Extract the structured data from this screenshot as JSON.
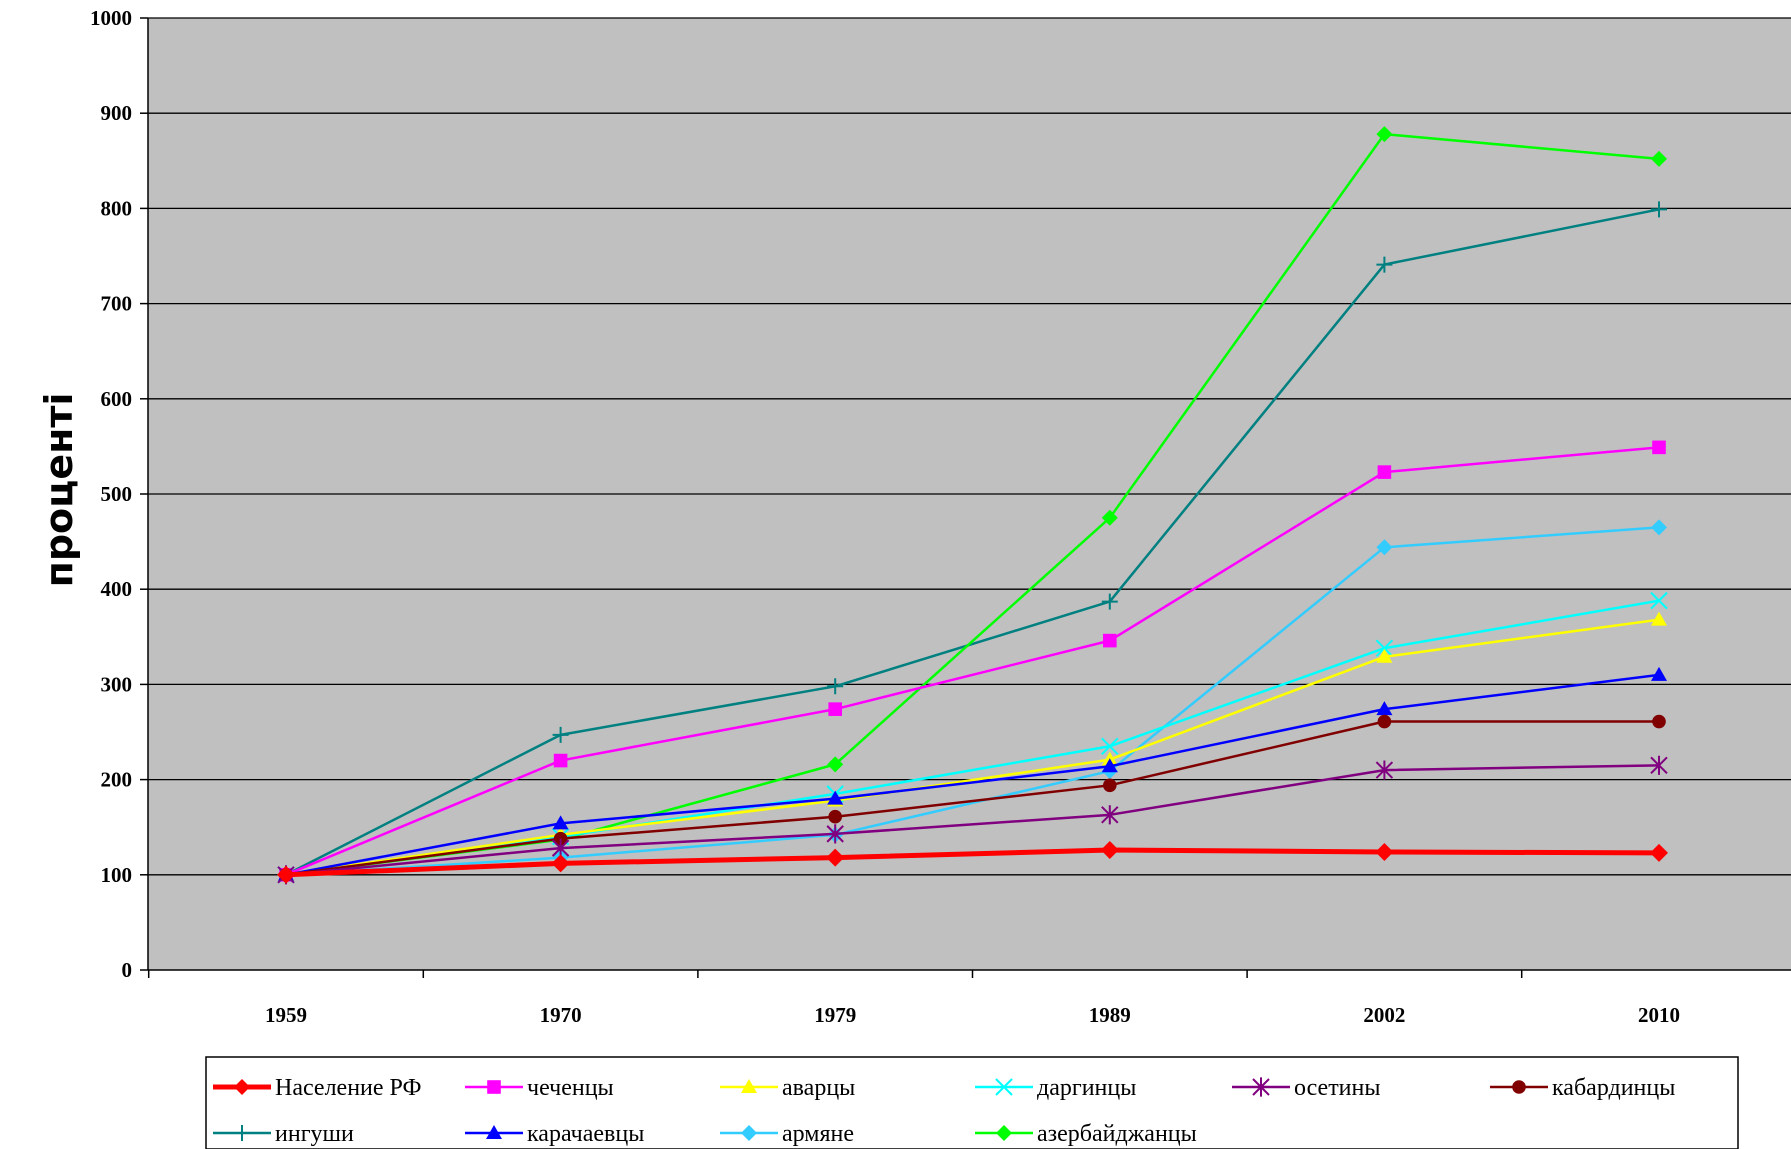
{
  "chart_data": {
    "type": "line",
    "title": "",
    "xlabel": "",
    "ylabel": "проценті",
    "x": [
      "1959",
      "1970",
      "1979",
      "1989",
      "2002",
      "2010"
    ],
    "ylim": [
      0,
      1000
    ],
    "yticks": [
      "0",
      "100",
      "200",
      "300",
      "400",
      "500",
      "600",
      "700",
      "800",
      "900",
      "1000"
    ],
    "grid": "horizontal",
    "legend_position": "bottom",
    "series": [
      {
        "name": "Население РФ",
        "color": "#FF0000",
        "marker": "diamond",
        "width": 5,
        "values": [
          100,
          112,
          118,
          126,
          124,
          123
        ]
      },
      {
        "name": "чеченцы",
        "color": "#FF00FF",
        "marker": "square",
        "width": 2.5,
        "values": [
          100,
          220,
          274,
          346,
          523,
          549
        ]
      },
      {
        "name": "аварцы",
        "color": "#FFFF00",
        "marker": "triangle",
        "width": 2.5,
        "values": [
          100,
          142,
          178,
          221,
          329,
          368
        ]
      },
      {
        "name": "даргинцы",
        "color": "#00FFFF",
        "marker": "x",
        "width": 2.5,
        "values": [
          100,
          140,
          185,
          235,
          338,
          388
        ]
      },
      {
        "name": "осетины",
        "color": "#800080",
        "marker": "asterisk",
        "width": 2.5,
        "values": [
          100,
          128,
          143,
          163,
          210,
          215
        ]
      },
      {
        "name": "кабардинцы",
        "color": "#800000",
        "marker": "circle",
        "width": 2.5,
        "values": [
          100,
          138,
          161,
          194,
          261,
          261
        ]
      },
      {
        "name": "ингуши",
        "color": "#008080",
        "marker": "plus",
        "width": 2.5,
        "values": [
          100,
          247,
          298,
          387,
          741,
          799
        ]
      },
      {
        "name": "карачаевцы",
        "color": "#0000FF",
        "marker": "triangle",
        "width": 2.5,
        "values": [
          100,
          154,
          180,
          214,
          274,
          310
        ]
      },
      {
        "name": "армяне",
        "color": "#33CCFF",
        "marker": "diamond",
        "width": 2.5,
        "values": [
          100,
          118,
          142,
          209,
          444,
          465
        ]
      },
      {
        "name": "азербайджанцы",
        "color": "#00FF00",
        "marker": "diamond",
        "width": 2.5,
        "values": [
          100,
          137,
          216,
          475,
          878,
          852
        ]
      }
    ]
  }
}
